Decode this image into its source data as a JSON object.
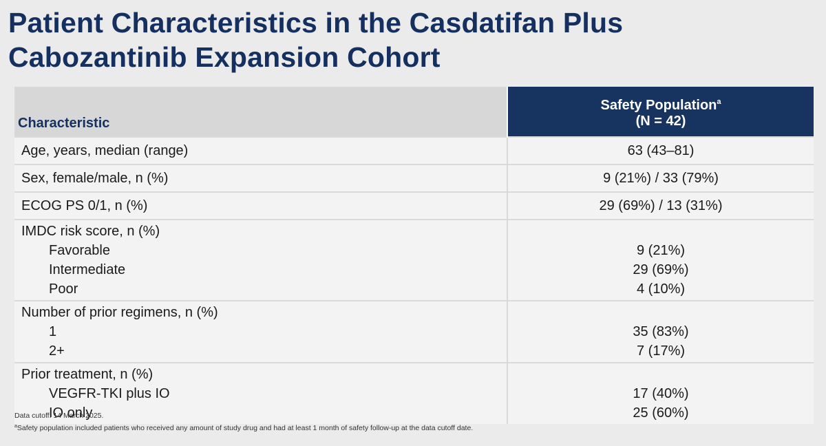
{
  "title": {
    "line1": "Patient Characteristics in the Casdatifan Plus",
    "line2": "Cabozantinib Expansion Cohort"
  },
  "table": {
    "header": {
      "characteristic": "Characteristic",
      "population_label": "Safety Population",
      "population_sup": "a",
      "population_n": "(N = 42)"
    },
    "rows": [
      {
        "label": "Age, years, median (range)",
        "value": "63 (43–81)"
      },
      {
        "label": "Sex, female/male, n (%)",
        "value": "9 (21%) / 33 (79%)"
      },
      {
        "label": "ECOG PS 0/1, n (%)",
        "value": "29 (69%) / 13 (31%)"
      }
    ],
    "groups": [
      {
        "label": "IMDC risk score, n (%)",
        "items": [
          {
            "label": "Favorable",
            "value": "9 (21%)"
          },
          {
            "label": "Intermediate",
            "value": "29 (69%)"
          },
          {
            "label": "Poor",
            "value": "4 (10%)"
          }
        ]
      },
      {
        "label": "Number of prior regimens, n (%)",
        "items": [
          {
            "label": "1",
            "value": "35 (83%)"
          },
          {
            "label": "2+",
            "value": "7 (17%)"
          }
        ]
      },
      {
        "label": "Prior treatment, n (%)",
        "items": [
          {
            "label": "VEGFR-TKI plus IO",
            "value": "17 (40%)"
          },
          {
            "label": "IO only",
            "value": "25 (60%)"
          }
        ]
      }
    ]
  },
  "footnotes": {
    "cutoff": "Data cutoff: 14 March 2025.",
    "a_marker": "a",
    "a_text": "Safety population included patients who received any amount of study drug and had at least 1 month of safety follow-up at the data cutoff date."
  },
  "colors": {
    "title": "#15305f",
    "header_fill": "#17335f",
    "header_char_fill": "#d6d7d6",
    "row_fill": "#f3f3f3",
    "background": "#eaebea"
  }
}
